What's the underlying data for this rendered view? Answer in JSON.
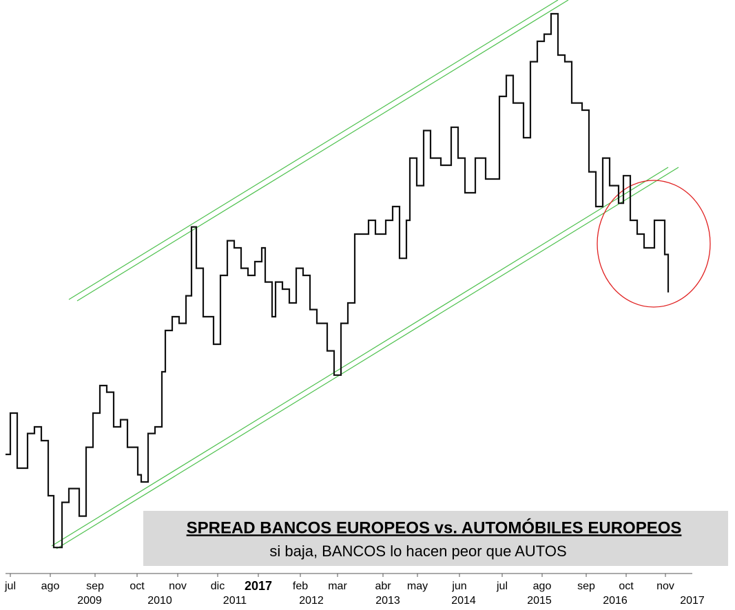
{
  "chart_data": {
    "type": "line",
    "title": "SPREAD BANCOS EUROPEOS vs. AUTOMÓBILES EUROPEOS",
    "subtitle": "si baja, BANCOS lo hacen peor que AUTOS",
    "xlim": [
      0,
      1067
    ],
    "ylim": [
      0,
      100
    ],
    "series": [
      {
        "color": "#111111",
        "x": [
          8,
          15,
          25,
          40,
          50,
          60,
          70,
          78,
          90,
          100,
          115,
          125,
          135,
          145,
          155,
          165,
          175,
          185,
          200,
          205,
          215,
          225,
          235,
          240,
          250,
          260,
          270,
          278,
          285,
          295,
          310,
          320,
          330,
          340,
          350,
          360,
          370,
          380,
          385,
          395,
          400,
          410,
          420,
          430,
          440,
          450,
          460,
          475,
          485,
          495,
          505,
          515,
          525,
          535,
          545,
          560,
          570,
          580,
          590,
          595,
          605,
          615,
          625,
          640,
          655,
          665,
          675,
          690,
          705,
          715,
          725,
          735,
          745,
          760,
          770,
          780,
          790,
          800,
          810,
          820,
          830,
          845,
          855,
          865,
          875,
          885,
          898,
          905,
          915,
          925,
          935,
          950,
          960,
          965,
          970
        ],
        "values": [
          20,
          27.5,
          17.5,
          23.8,
          25,
          22.5,
          12.5,
          3.1,
          11.3,
          13.8,
          8.8,
          21.3,
          27.5,
          32.5,
          31.3,
          25,
          26.3,
          21.3,
          16.3,
          15,
          23.8,
          25,
          35,
          42.5,
          45,
          43.8,
          48.8,
          61.3,
          53.8,
          45,
          40,
          52.5,
          58.8,
          57.5,
          53.8,
          52.5,
          55,
          57.5,
          51.3,
          45,
          51.3,
          50,
          47.5,
          53.8,
          52.5,
          46.3,
          43.8,
          38.8,
          34.4,
          43.8,
          47.5,
          60,
          60,
          62.5,
          60,
          62.5,
          65,
          55.6,
          62.5,
          73.8,
          68.8,
          78.8,
          73.8,
          72.5,
          79.4,
          73.8,
          67.5,
          73.8,
          70,
          70,
          85,
          88.8,
          83.8,
          77.5,
          91.3,
          95,
          96.3,
          100,
          92.5,
          91.3,
          83.8,
          82.5,
          71.3,
          65,
          73.8,
          68.8,
          65.6,
          70.6,
          62.5,
          60,
          57.5,
          62.5,
          62.5,
          56.3,
          49.4
        ]
      }
    ],
    "xticks": [
      {
        "value": 15,
        "label": "jul"
      },
      {
        "value": 73,
        "label": "ago"
      },
      {
        "value": 138,
        "label": "sep"
      },
      {
        "value": 199,
        "label": "oct"
      },
      {
        "value": 258,
        "label": "nov"
      },
      {
        "value": 316,
        "label": "dic"
      },
      {
        "value": 375,
        "label": "2017",
        "bold": true
      },
      {
        "value": 436,
        "label": "feb"
      },
      {
        "value": 490,
        "label": "mar"
      },
      {
        "value": 556,
        "label": "abr"
      },
      {
        "value": 606,
        "label": "may"
      },
      {
        "value": 667,
        "label": "jun"
      },
      {
        "value": 729,
        "label": "jul"
      },
      {
        "value": 787,
        "label": "ago"
      },
      {
        "value": 851,
        "label": "sep"
      },
      {
        "value": 909,
        "label": "oct"
      },
      {
        "value": 966,
        "label": "nov"
      }
    ],
    "year_ticks": [
      {
        "value": 130,
        "label": "2009"
      },
      {
        "value": 232,
        "label": "2010"
      },
      {
        "value": 341,
        "label": "2011"
      },
      {
        "value": 452,
        "label": "2012"
      },
      {
        "value": 563,
        "label": "2013"
      },
      {
        "value": 673,
        "label": "2014"
      },
      {
        "value": 783,
        "label": "2015"
      },
      {
        "value": 893,
        "label": "2016"
      },
      {
        "value": 1005,
        "label": "2017"
      }
    ]
  }
}
